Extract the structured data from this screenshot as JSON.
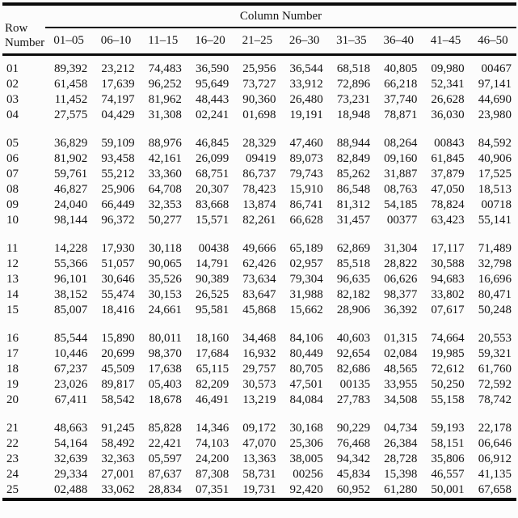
{
  "table": {
    "col_group_title": "Column Number",
    "row_header": {
      "line1": "Row",
      "line2": "Number"
    },
    "column_headers": [
      "01–05",
      "06–10",
      "11–15",
      "16–20",
      "21–25",
      "26–30",
      "31–35",
      "36–40",
      "41–45",
      "46–50"
    ],
    "groups": [
      {
        "rows": [
          {
            "row_number": "01",
            "values": [
              "89,392",
              "23,212",
              "74,483",
              "36,590",
              "25,956",
              "36,544",
              "68,518",
              "40,805",
              "09,980",
              "00467"
            ]
          },
          {
            "row_number": "02",
            "values": [
              "61,458",
              "17,639",
              "96,252",
              "95,649",
              "73,727",
              "33,912",
              "72,896",
              "66,218",
              "52,341",
              "97,141"
            ]
          },
          {
            "row_number": "03",
            "values": [
              "11,452",
              "74,197",
              "81,962",
              "48,443",
              "90,360",
              "26,480",
              "73,231",
              "37,740",
              "26,628",
              "44,690"
            ]
          },
          {
            "row_number": "04",
            "values": [
              "27,575",
              "04,429",
              "31,308",
              "02,241",
              "01,698",
              "19,191",
              "18,948",
              "78,871",
              "36,030",
              "23,980"
            ]
          }
        ]
      },
      {
        "rows": [
          {
            "row_number": "05",
            "values": [
              "36,829",
              "59,109",
              "88,976",
              "46,845",
              "28,329",
              "47,460",
              "88,944",
              "08,264",
              "00843",
              "84,592"
            ]
          },
          {
            "row_number": "06",
            "values": [
              "81,902",
              "93,458",
              "42,161",
              "26,099",
              "09419",
              "89,073",
              "82,849",
              "09,160",
              "61,845",
              "40,906"
            ]
          },
          {
            "row_number": "07",
            "values": [
              "59,761",
              "55,212",
              "33,360",
              "68,751",
              "86,737",
              "79,743",
              "85,262",
              "31,887",
              "37,879",
              "17,525"
            ]
          },
          {
            "row_number": "08",
            "values": [
              "46,827",
              "25,906",
              "64,708",
              "20,307",
              "78,423",
              "15,910",
              "86,548",
              "08,763",
              "47,050",
              "18,513"
            ]
          },
          {
            "row_number": "09",
            "values": [
              "24,040",
              "66,449",
              "32,353",
              "83,668",
              "13,874",
              "86,741",
              "81,312",
              "54,185",
              "78,824",
              "00718"
            ]
          },
          {
            "row_number": "10",
            "values": [
              "98,144",
              "96,372",
              "50,277",
              "15,571",
              "82,261",
              "66,628",
              "31,457",
              "00377",
              "63,423",
              "55,141"
            ]
          }
        ]
      },
      {
        "rows": [
          {
            "row_number": "11",
            "values": [
              "14,228",
              "17,930",
              "30,118",
              "00438",
              "49,666",
              "65,189",
              "62,869",
              "31,304",
              "17,117",
              "71,489"
            ]
          },
          {
            "row_number": "12",
            "values": [
              "55,366",
              "51,057",
              "90,065",
              "14,791",
              "62,426",
              "02,957",
              "85,518",
              "28,822",
              "30,588",
              "32,798"
            ]
          },
          {
            "row_number": "13",
            "values": [
              "96,101",
              "30,646",
              "35,526",
              "90,389",
              "73,634",
              "79,304",
              "96,635",
              "06,626",
              "94,683",
              "16,696"
            ]
          },
          {
            "row_number": "14",
            "values": [
              "38,152",
              "55,474",
              "30,153",
              "26,525",
              "83,647",
              "31,988",
              "82,182",
              "98,377",
              "33,802",
              "80,471"
            ]
          },
          {
            "row_number": "15",
            "values": [
              "85,007",
              "18,416",
              "24,661",
              "95,581",
              "45,868",
              "15,662",
              "28,906",
              "36,392",
              "07,617",
              "50,248"
            ]
          }
        ]
      },
      {
        "rows": [
          {
            "row_number": "16",
            "values": [
              "85,544",
              "15,890",
              "80,011",
              "18,160",
              "34,468",
              "84,106",
              "40,603",
              "01,315",
              "74,664",
              "20,553"
            ]
          },
          {
            "row_number": "17",
            "values": [
              "10,446",
              "20,699",
              "98,370",
              "17,684",
              "16,932",
              "80,449",
              "92,654",
              "02,084",
              "19,985",
              "59,321"
            ]
          },
          {
            "row_number": "18",
            "values": [
              "67,237",
              "45,509",
              "17,638",
              "65,115",
              "29,757",
              "80,705",
              "82,686",
              "48,565",
              "72,612",
              "61,760"
            ]
          },
          {
            "row_number": "19",
            "values": [
              "23,026",
              "89,817",
              "05,403",
              "82,209",
              "30,573",
              "47,501",
              "00135",
              "33,955",
              "50,250",
              "72,592"
            ]
          },
          {
            "row_number": "20",
            "values": [
              "67,411",
              "58,542",
              "18,678",
              "46,491",
              "13,219",
              "84,084",
              "27,783",
              "34,508",
              "55,158",
              "78,742"
            ]
          }
        ]
      },
      {
        "rows": [
          {
            "row_number": "21",
            "values": [
              "48,663",
              "91,245",
              "85,828",
              "14,346",
              "09,172",
              "30,168",
              "90,229",
              "04,734",
              "59,193",
              "22,178"
            ]
          },
          {
            "row_number": "22",
            "values": [
              "54,164",
              "58,492",
              "22,421",
              "74,103",
              "47,070",
              "25,306",
              "76,468",
              "26,384",
              "58,151",
              "06,646"
            ]
          },
          {
            "row_number": "23",
            "values": [
              "32,639",
              "32,363",
              "05,597",
              "24,200",
              "13,363",
              "38,005",
              "94,342",
              "28,728",
              "35,806",
              "06,912"
            ]
          },
          {
            "row_number": "24",
            "values": [
              "29,334",
              "27,001",
              "87,637",
              "87,308",
              "58,731",
              "00256",
              "45,834",
              "15,398",
              "46,557",
              "41,135"
            ]
          },
          {
            "row_number": "25",
            "values": [
              "02,488",
              "33,062",
              "28,834",
              "07,351",
              "19,731",
              "92,420",
              "60,952",
              "61,280",
              "50,001",
              "67,658"
            ]
          }
        ]
      }
    ]
  }
}
